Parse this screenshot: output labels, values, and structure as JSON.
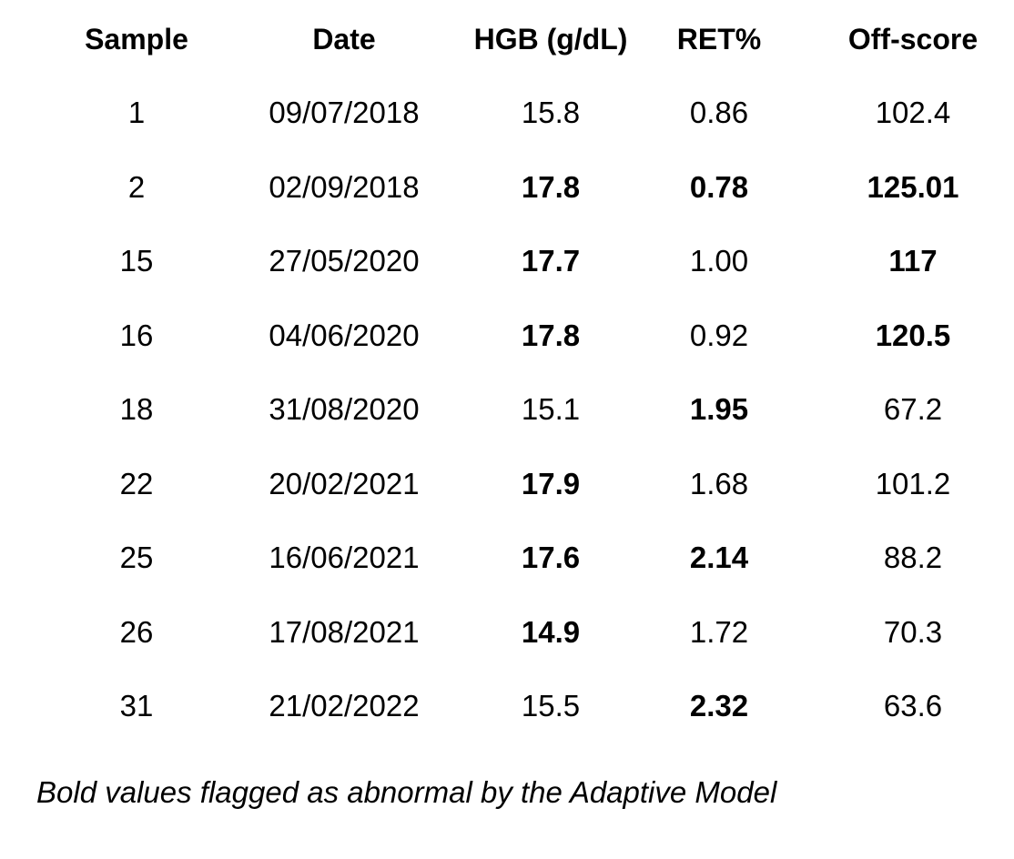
{
  "table": {
    "headers": [
      "Sample",
      "Date",
      "HGB (g/dL)",
      "RET%",
      "Off-score"
    ],
    "rows": [
      {
        "cells": [
          "1",
          "09/07/2018",
          "15.8",
          "0.86",
          "102.4"
        ],
        "bold": [
          false,
          false,
          false,
          false,
          false
        ]
      },
      {
        "cells": [
          "2",
          "02/09/2018",
          "17.8",
          "0.78",
          "125.01"
        ],
        "bold": [
          false,
          false,
          true,
          true,
          true
        ]
      },
      {
        "cells": [
          "15",
          "27/05/2020",
          "17.7",
          "1.00",
          "117"
        ],
        "bold": [
          false,
          false,
          true,
          false,
          true
        ]
      },
      {
        "cells": [
          "16",
          "04/06/2020",
          "17.8",
          "0.92",
          "120.5"
        ],
        "bold": [
          false,
          false,
          true,
          false,
          true
        ]
      },
      {
        "cells": [
          "18",
          "31/08/2020",
          "15.1",
          "1.95",
          "67.2"
        ],
        "bold": [
          false,
          false,
          false,
          true,
          false
        ]
      },
      {
        "cells": [
          "22",
          "20/02/2021",
          "17.9",
          "1.68",
          "101.2"
        ],
        "bold": [
          false,
          false,
          true,
          false,
          false
        ]
      },
      {
        "cells": [
          "25",
          "16/06/2021",
          "17.6",
          "2.14",
          "88.2"
        ],
        "bold": [
          false,
          false,
          true,
          true,
          false
        ]
      },
      {
        "cells": [
          "26",
          "17/08/2021",
          "14.9",
          "1.72",
          "70.3"
        ],
        "bold": [
          false,
          false,
          true,
          false,
          false
        ]
      },
      {
        "cells": [
          "31",
          "21/02/2022",
          "15.5",
          "2.32",
          "63.6"
        ],
        "bold": [
          false,
          false,
          false,
          true,
          false
        ]
      }
    ]
  },
  "caption": "Bold values flagged as abnormal by the Adaptive Model"
}
